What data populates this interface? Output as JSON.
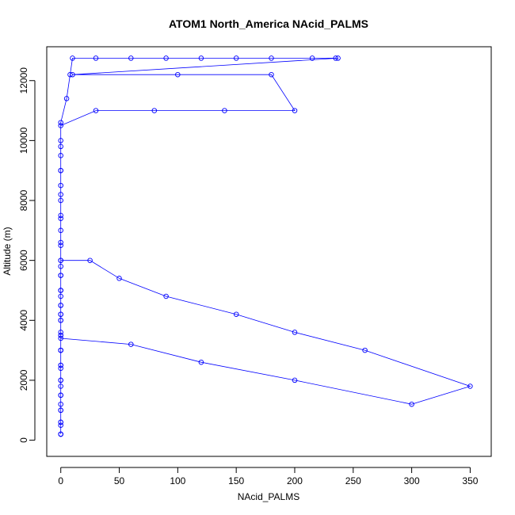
{
  "chart_data": {
    "type": "scatter",
    "title": "ATOM1 North_America NAcid_PALMS",
    "xlabel": "NAcid_PALMS",
    "ylabel": "Altitude (m)",
    "xlim": [
      -12,
      368
    ],
    "ylim": [
      -540,
      13130
    ],
    "xticks": [
      0,
      50,
      100,
      150,
      200,
      250,
      300,
      350
    ],
    "yticks": [
      0,
      2000,
      4000,
      6000,
      8000,
      10000,
      12000
    ],
    "grid": false,
    "legend": "none",
    "color": "#0000ff",
    "style": "points connected by lines",
    "series": [
      {
        "x": [
          0,
          0,
          0,
          0,
          0,
          0,
          0,
          0,
          0,
          0,
          0,
          0,
          0,
          25,
          50,
          90,
          150,
          200,
          260,
          350,
          300,
          200,
          120,
          60,
          0,
          0,
          0,
          0,
          0,
          0,
          0,
          0,
          0,
          0,
          5,
          8,
          10,
          30,
          60,
          90,
          120,
          150,
          180,
          215,
          235,
          237,
          10,
          100,
          180,
          200,
          140,
          80,
          30,
          0,
          0,
          0,
          0,
          0,
          0,
          0,
          0,
          0,
          0,
          0,
          0,
          0,
          0,
          0,
          0,
          0,
          0,
          0,
          0,
          0,
          0,
          0,
          0,
          0,
          0,
          0,
          0,
          0,
          0,
          0,
          0
        ],
        "y": [
          200,
          600,
          1000,
          1500,
          2000,
          2500,
          3000,
          3500,
          4000,
          4500,
          5000,
          5500,
          6000,
          6000,
          5400,
          4800,
          4200,
          3600,
          3000,
          1800,
          1200,
          2000,
          2600,
          3200,
          3400,
          4200,
          5000,
          5800,
          6600,
          7400,
          8200,
          9000,
          9800,
          10600,
          11400,
          12200,
          12750,
          12750,
          12750,
          12750,
          12750,
          12750,
          12750,
          12750,
          12750,
          12750,
          12200,
          12200,
          12200,
          11000,
          11000,
          11000,
          11000,
          10500,
          10000,
          9500,
          9000,
          8500,
          8000,
          7500,
          7000,
          6500,
          6000,
          5500,
          5000,
          4500,
          4000,
          3500,
          3000,
          2500,
          2000,
          1500,
          1000,
          500,
          200,
          200,
          200,
          600,
          1200,
          1800,
          2400,
          3000,
          3600,
          4200,
          4800
        ]
      }
    ]
  }
}
